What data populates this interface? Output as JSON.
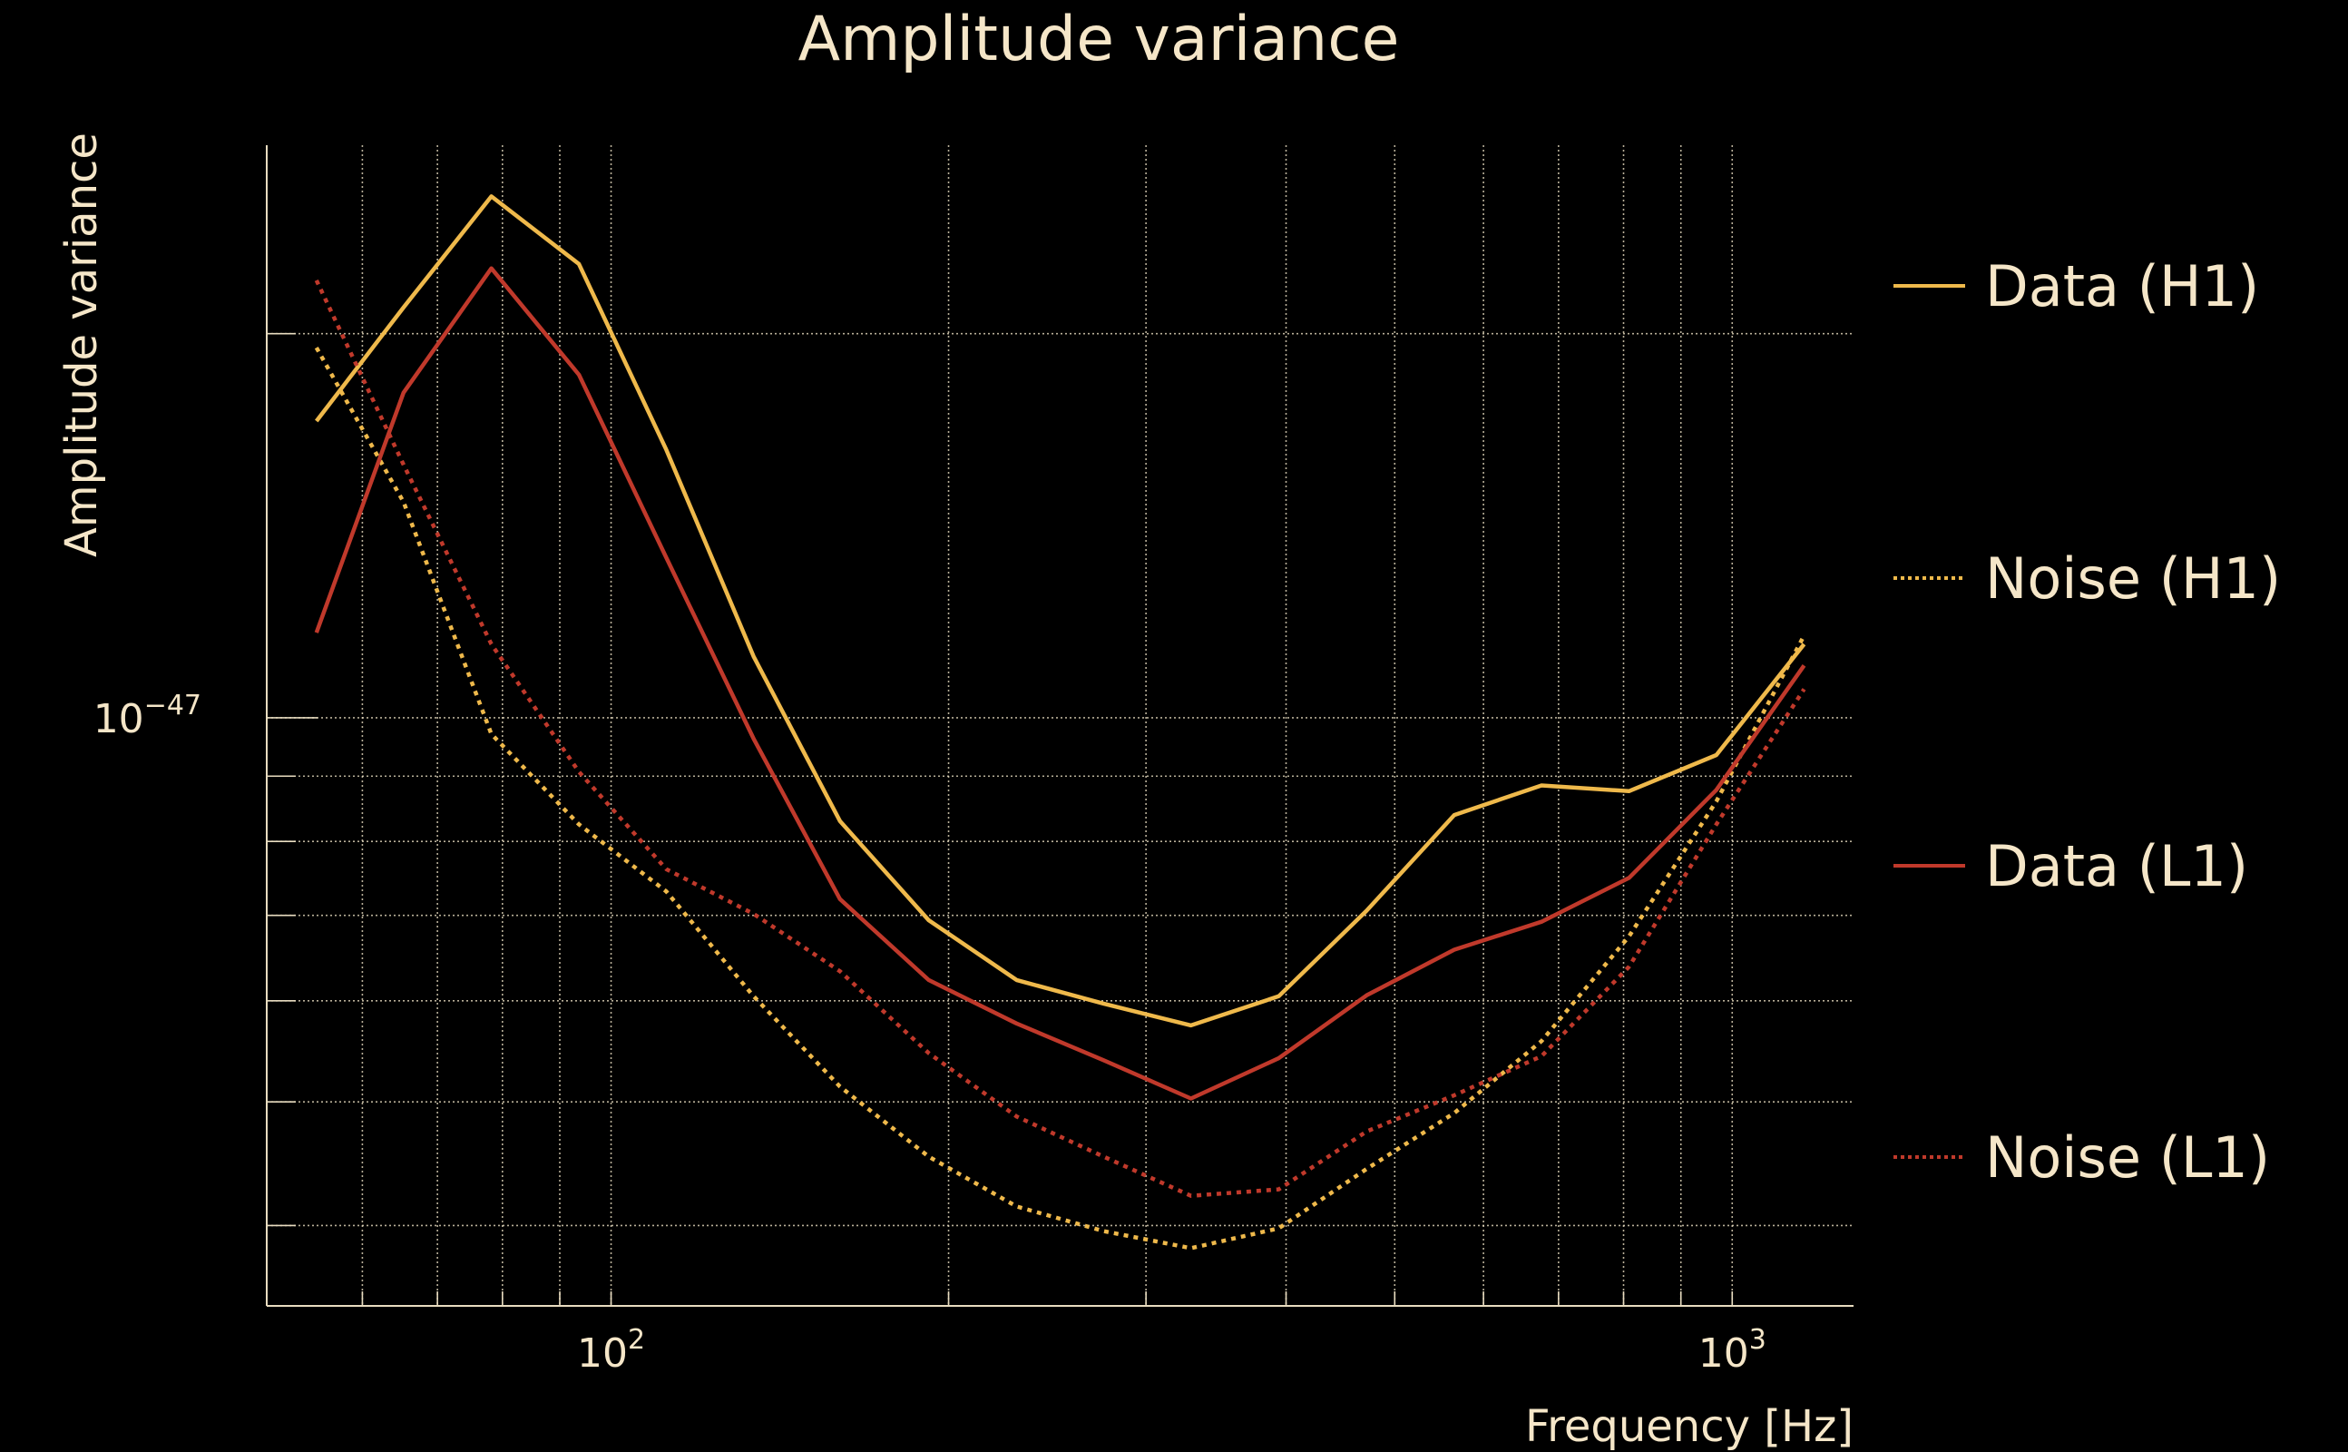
{
  "chart_data": {
    "type": "line",
    "title": "Amplitude variance",
    "xlabel": "Frequency [Hz]",
    "ylabel": "Amplitude variance",
    "xscale": "log",
    "yscale": "log",
    "xlim": [
      49.3,
      1283
    ],
    "ylim": [
      3.46e-48,
      2.81e-47
    ],
    "grid": true,
    "legend_position": "right-outside",
    "x_tick_labels": [
      {
        "value": 100,
        "base": "10",
        "exp": "2"
      },
      {
        "value": 1000,
        "base": "10",
        "exp": "3"
      }
    ],
    "y_tick_labels": [
      {
        "value": 1e-47,
        "base": "10",
        "exp": "−47"
      }
    ],
    "x_minor_grid": [
      60,
      70,
      80,
      90,
      100,
      200,
      300,
      400,
      500,
      600,
      700,
      800,
      900,
      1000
    ],
    "y_minor_grid": [
      4e-48,
      5e-48,
      6e-48,
      7e-48,
      8e-48,
      9e-48,
      1e-47,
      2e-47
    ],
    "x": [
      54.6,
      65.3,
      78.2,
      93.6,
      112,
      134,
      160,
      192,
      230,
      275,
      329,
      394,
      472,
      565,
      676,
      809,
      968,
      1159
    ],
    "series": [
      {
        "name": "Data (H1)",
        "color": "#efb94b",
        "style": "solid",
        "values": [
          1.708e-47,
          2.097e-47,
          2.562e-47,
          2.268e-47,
          1.622e-47,
          1.117e-47,
          8.3e-48,
          6.94e-48,
          6.23e-48,
          5.97e-48,
          5.74e-48,
          6.05e-48,
          7.06e-48,
          8.39e-48,
          8.85e-48,
          8.76e-48,
          9.35e-48,
          1.142e-47
        ]
      },
      {
        "name": "Noise (H1)",
        "color": "#efb94b",
        "style": "dotted",
        "values": [
          1.95e-47,
          1.476e-47,
          9.71e-48,
          8.25e-48,
          7.31e-48,
          6.05e-48,
          5.14e-48,
          4.53e-48,
          4.14e-48,
          3.96e-48,
          3.84e-48,
          3.98e-48,
          4.43e-48,
          4.9e-48,
          5.58e-48,
          6.74e-48,
          8.6e-48,
          1.16e-47
        ]
      },
      {
        "name": "Data (L1)",
        "color": "#c0392b",
        "style": "solid",
        "values": [
          1.166e-47,
          1.798e-47,
          2.25e-47,
          1.857e-47,
          1.335e-47,
          9.63e-48,
          7.21e-48,
          6.23e-48,
          5.76e-48,
          5.39e-48,
          5.03e-48,
          5.41e-48,
          6.06e-48,
          6.58e-48,
          6.92e-48,
          7.49e-48,
          8.78e-48,
          1.099e-47
        ]
      },
      {
        "name": "Noise (L1)",
        "color": "#c0392b",
        "style": "dotted",
        "values": [
          2.202e-47,
          1.579e-47,
          1.142e-47,
          9.07e-48,
          7.61e-48,
          7.02e-48,
          6.33e-48,
          5.46e-48,
          4.87e-48,
          4.53e-48,
          4.22e-48,
          4.27e-48,
          4.74e-48,
          5.06e-48,
          5.43e-48,
          6.38e-48,
          8.25e-48,
          1.053e-47
        ]
      }
    ]
  },
  "colors": {
    "text": "#f5e6c8",
    "grid": "#e8dcc0",
    "background": "#000000"
  }
}
